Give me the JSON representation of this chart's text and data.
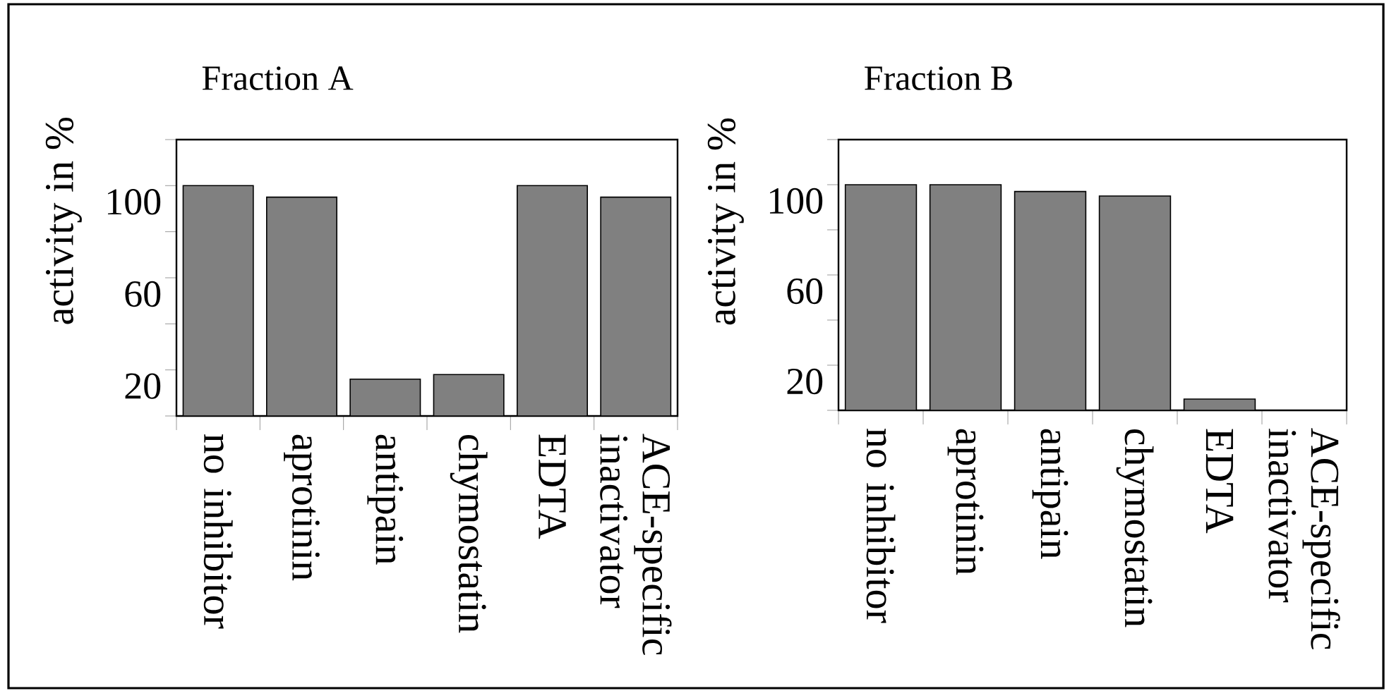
{
  "chart_data": [
    {
      "type": "bar",
      "title": "Fraction A",
      "ylabel": "activity in %",
      "categories": [
        "no inhibitor",
        "aprotinin",
        "antipain",
        "chymostatin",
        "EDTA",
        "ACE-specific inactivator"
      ],
      "values": [
        100,
        95,
        16,
        18,
        100,
        95
      ],
      "color": "#808080",
      "ylim": [
        0,
        120
      ],
      "yticks": [
        {
          "value": 0,
          "label": null
        },
        20,
        {
          "value": 40,
          "label": null
        },
        60,
        {
          "value": 80,
          "label": null
        },
        100,
        {
          "value": 120,
          "label": null
        }
      ]
    },
    {
      "type": "bar",
      "title": "Fraction B",
      "ylabel": "activity in %",
      "categories": [
        "no inhibitor",
        "aprotinin",
        "antipain",
        "chymostatin",
        "EDTA",
        "ACE-specific inactivator"
      ],
      "values": [
        100,
        100,
        97,
        95,
        5,
        0
      ],
      "color": "#808080",
      "ylim": [
        0,
        120
      ],
      "yticks": [
        {
          "value": 0,
          "label": null
        },
        20,
        {
          "value": 40,
          "label": null
        },
        60,
        {
          "value": 80,
          "label": null
        },
        100,
        {
          "value": 120,
          "label": null
        }
      ]
    }
  ]
}
